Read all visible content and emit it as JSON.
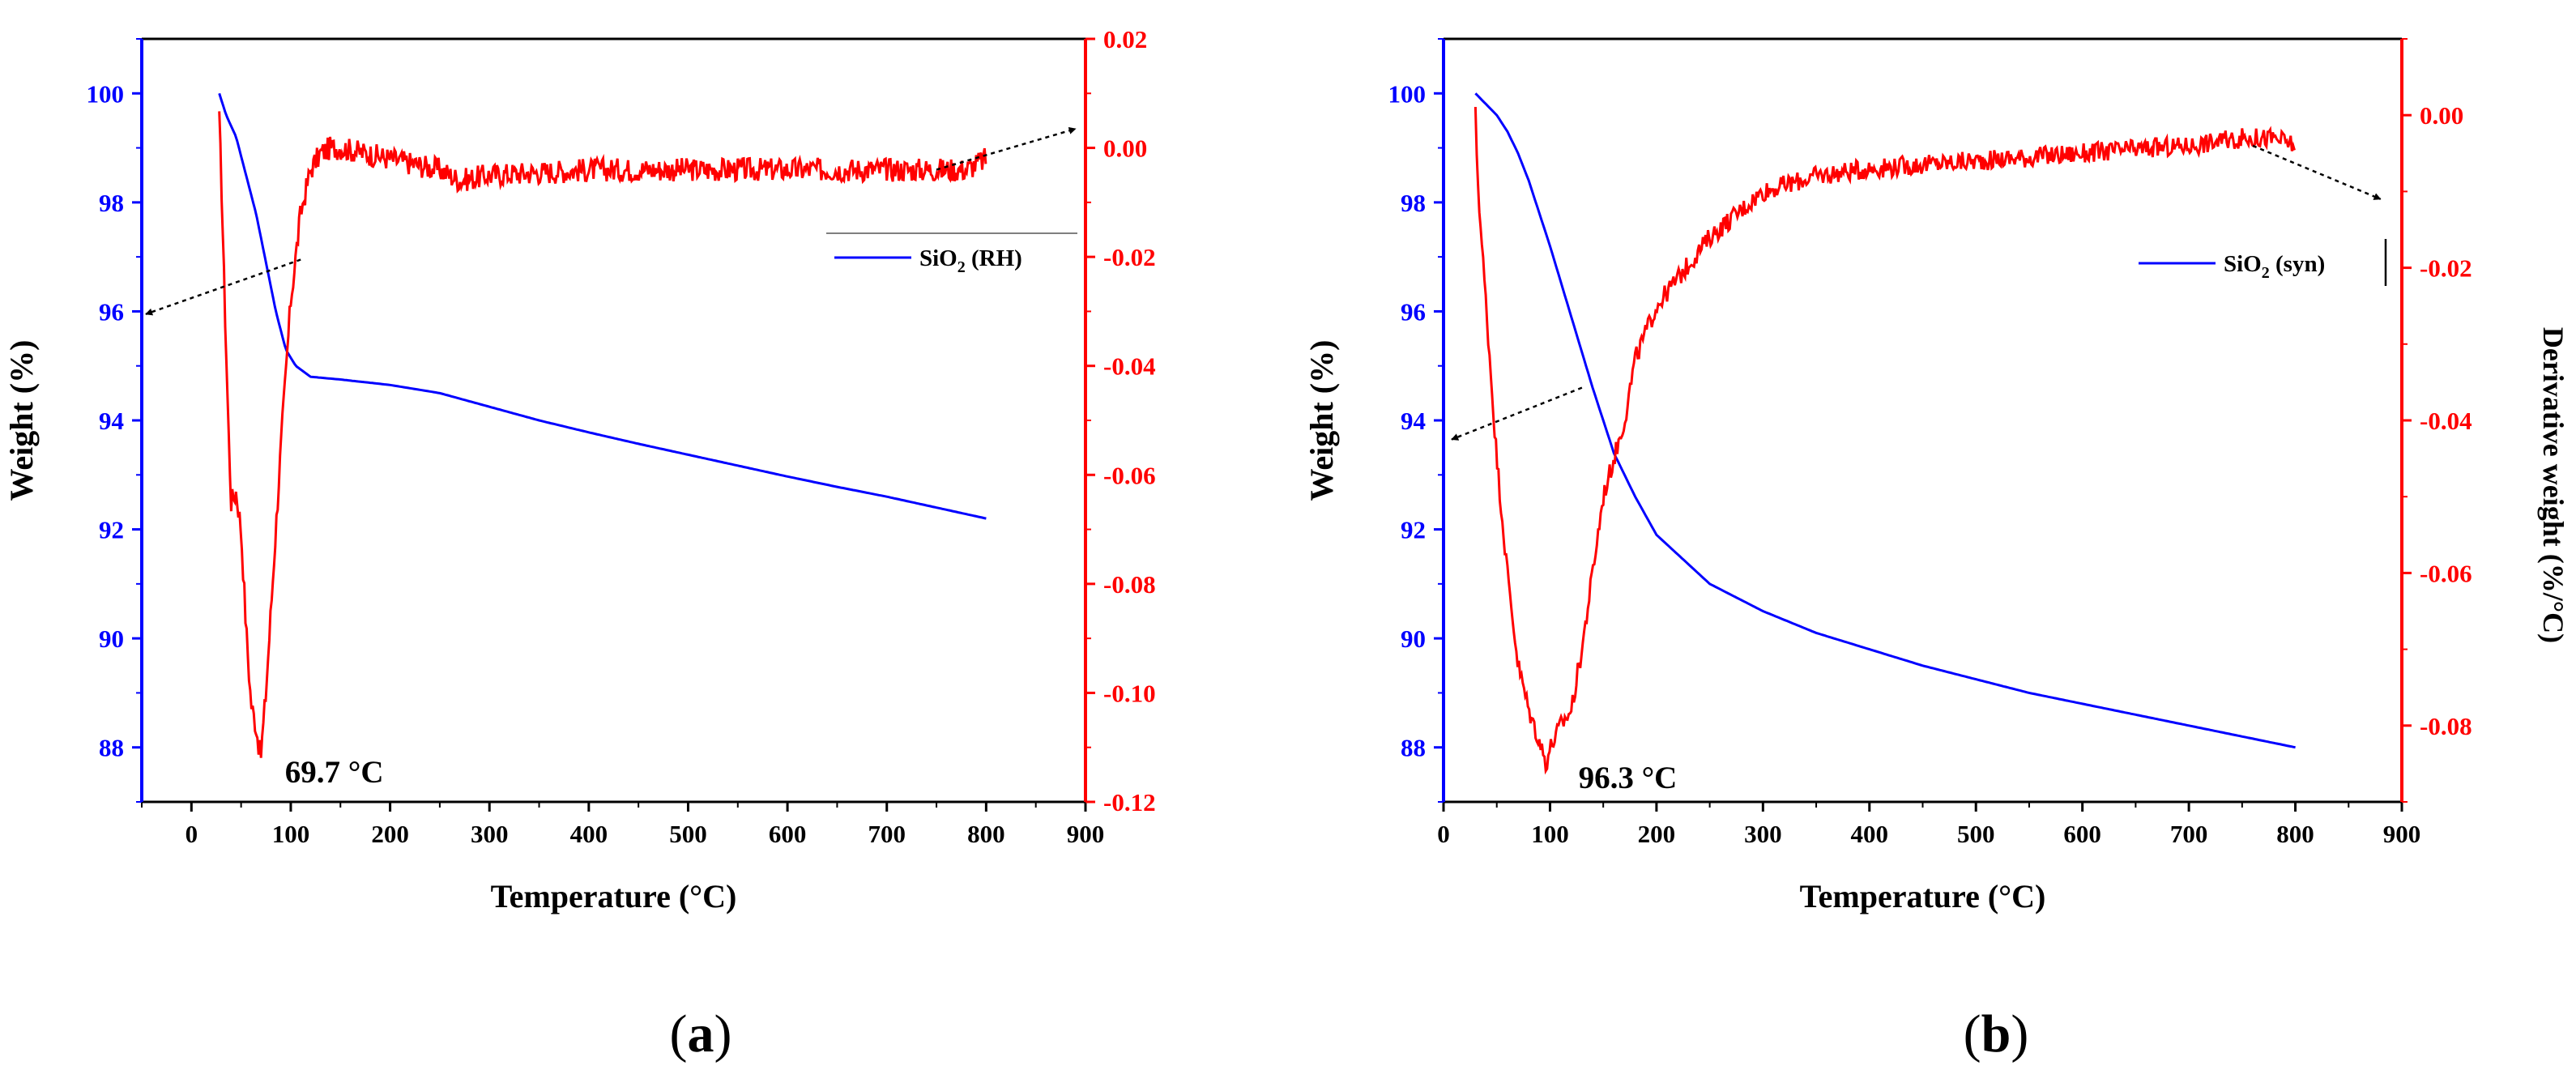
{
  "colors": {
    "weight": "#0000ff",
    "derivative": "#ff0000",
    "frame": "#000000",
    "arrow": "#000000"
  },
  "chart_data": [
    {
      "type": "line",
      "panel_label": "(a)",
      "panel_letter": "a",
      "xlabel": "Temperature (°C)",
      "ylabel": "Weight (%)",
      "y2label": "",
      "xlim": [
        -50,
        900
      ],
      "ylim": [
        87,
        101
      ],
      "y2lim": [
        -0.12,
        0.02
      ],
      "xticks": [
        0,
        100,
        200,
        300,
        400,
        500,
        600,
        700,
        800,
        900
      ],
      "yticks": [
        88,
        90,
        92,
        94,
        96,
        98,
        100
      ],
      "y2ticks": [
        -0.12,
        -0.1,
        -0.08,
        -0.06,
        -0.04,
        -0.02,
        0.0,
        0.02
      ],
      "legend": {
        "label": "SiO2 (RH)",
        "base": "SiO",
        "sub": "2",
        "rest": " (RH)",
        "position": "right-middle"
      },
      "annotation": {
        "text": "69.7 °C",
        "x": 69.7,
        "y2": -0.112
      },
      "series": [
        {
          "name": "SiO2 (RH) weight",
          "axis": "left",
          "x": [
            28,
            35,
            45,
            55,
            65,
            75,
            85,
            95,
            105,
            120,
            150,
            200,
            250,
            300,
            350,
            400,
            450,
            500,
            550,
            600,
            650,
            700,
            750,
            800
          ],
          "values": [
            100.0,
            99.6,
            99.2,
            98.5,
            97.8,
            96.9,
            96.0,
            95.3,
            95.0,
            94.8,
            94.75,
            94.65,
            94.5,
            94.25,
            94.0,
            93.78,
            93.57,
            93.37,
            93.17,
            92.97,
            92.78,
            92.6,
            92.4,
            92.2
          ]
        },
        {
          "name": "SiO2 (RH) derivative weight",
          "axis": "right",
          "noise": 0.0022,
          "x": [
            28,
            30,
            33,
            37,
            40,
            45,
            50,
            55,
            60,
            65,
            69.7,
            75,
            80,
            90,
            100,
            110,
            120,
            130,
            140,
            150,
            200,
            250,
            270,
            300,
            400,
            500,
            600,
            700,
            780,
            800
          ],
          "values": [
            0.005,
            -0.005,
            -0.025,
            -0.05,
            -0.065,
            -0.063,
            -0.07,
            -0.088,
            -0.102,
            -0.106,
            -0.112,
            -0.1,
            -0.085,
            -0.055,
            -0.028,
            -0.012,
            -0.004,
            -0.001,
            0.0,
            0.0,
            -0.002,
            -0.004,
            -0.006,
            -0.005,
            -0.004,
            -0.004,
            -0.004,
            -0.004,
            -0.004,
            -0.002
          ]
        }
      ]
    },
    {
      "type": "line",
      "panel_label": "(b)",
      "panel_letter": "b",
      "xlabel": "Temperature (°C)",
      "ylabel": "Weight (%)",
      "y2label": "Derivative weight (%/°C)",
      "xlim": [
        0,
        900
      ],
      "ylim": [
        87,
        101
      ],
      "y2lim": [
        -0.09,
        0.01
      ],
      "xticks": [
        0,
        100,
        200,
        300,
        400,
        500,
        600,
        700,
        800,
        900
      ],
      "yticks": [
        88,
        90,
        92,
        94,
        96,
        98,
        100
      ],
      "y2ticks": [
        -0.08,
        -0.06,
        -0.04,
        -0.02,
        0.0
      ],
      "legend": {
        "label": "SiO2 (syn)",
        "base": "SiO",
        "sub": "2",
        "rest": " (syn)",
        "position": "right-middle"
      },
      "annotation": {
        "text": "96.3 °C",
        "x": 96.3,
        "y2": -0.085
      },
      "series": [
        {
          "name": "SiO2 (syn) weight",
          "axis": "left",
          "x": [
            30,
            40,
            50,
            60,
            70,
            80,
            100,
            120,
            140,
            160,
            180,
            200,
            250,
            300,
            350,
            400,
            450,
            500,
            550,
            600,
            650,
            700,
            750,
            800
          ],
          "values": [
            100.0,
            99.8,
            99.6,
            99.3,
            98.9,
            98.4,
            97.2,
            95.9,
            94.6,
            93.4,
            92.6,
            91.9,
            91.0,
            90.5,
            90.1,
            89.8,
            89.5,
            89.25,
            89.0,
            88.8,
            88.6,
            88.4,
            88.2,
            88.0
          ]
        },
        {
          "name": "SiO2 (syn) derivative weight",
          "axis": "right",
          "noise": 0.0013,
          "x": [
            30,
            32,
            35,
            40,
            50,
            60,
            70,
            80,
            90,
            96.3,
            100,
            110,
            120,
            130,
            140,
            150,
            160,
            170,
            180,
            200,
            250,
            300,
            350,
            400,
            500,
            600,
            700,
            750,
            780,
            800
          ],
          "values": [
            0.0,
            -0.008,
            -0.015,
            -0.025,
            -0.045,
            -0.06,
            -0.072,
            -0.078,
            -0.082,
            -0.085,
            -0.083,
            -0.08,
            -0.078,
            -0.07,
            -0.06,
            -0.05,
            -0.045,
            -0.04,
            -0.032,
            -0.025,
            -0.016,
            -0.01,
            -0.008,
            -0.007,
            -0.006,
            -0.005,
            -0.004,
            -0.003,
            -0.003,
            -0.004
          ]
        }
      ]
    }
  ]
}
